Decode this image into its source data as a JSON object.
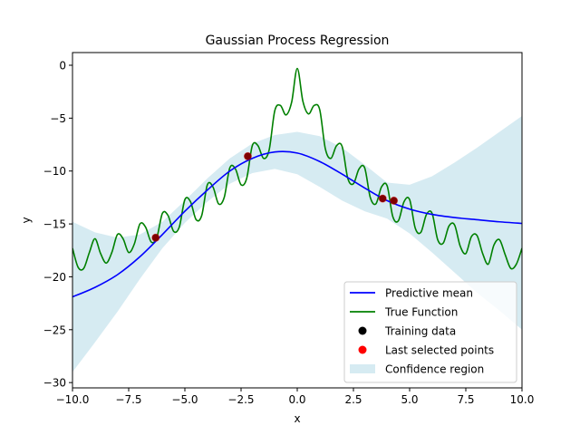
{
  "chart_data": {
    "type": "line",
    "title": "Gaussian Process Regression",
    "xlabel": "x",
    "ylabel": "y",
    "xlim": [
      -10,
      10
    ],
    "ylim": [
      -30.5,
      1.2
    ],
    "grid": false,
    "legend_position": "lower-right",
    "xticks": [
      -10,
      -7.5,
      -5,
      -2.5,
      0,
      2.5,
      5,
      7.5,
      10
    ],
    "xtick_labels": [
      "−10.0",
      "−7.5",
      "−5.0",
      "−2.5",
      "0.0",
      "2.5",
      "5.0",
      "7.5",
      "10.0"
    ],
    "yticks": [
      0,
      -5,
      -10,
      -15,
      -20,
      -25,
      -30
    ],
    "ytick_labels": [
      "0",
      "−5",
      "−10",
      "−15",
      "−20",
      "−25",
      "−30"
    ],
    "colors": {
      "predictive_mean": "#0000ff",
      "true_function": "#008000",
      "training_data": "#000000",
      "last_selected": "#ff0000",
      "confidence_fill": "#add8e6"
    },
    "series": [
      {
        "name": "Predictive mean",
        "kind": "line",
        "x": [
          -10,
          -9,
          -8,
          -7,
          -6,
          -5,
          -4,
          -3,
          -2,
          -1,
          0,
          1,
          2,
          3,
          4,
          5,
          6,
          7,
          8,
          9,
          10
        ],
        "y": [
          -21.9,
          -21.0,
          -19.8,
          -18.1,
          -16.0,
          -13.8,
          -11.8,
          -10.0,
          -8.8,
          -8.2,
          -8.3,
          -9.1,
          -10.3,
          -11.6,
          -12.8,
          -13.6,
          -14.1,
          -14.4,
          -14.6,
          -14.8,
          -14.95
        ]
      },
      {
        "name": "True Function",
        "kind": "line",
        "formula_note": "",
        "x": [],
        "y": []
      },
      {
        "name": "Training data",
        "kind": "scatter",
        "x": [
          -6.3,
          -2.2,
          3.8,
          4.3
        ],
        "y": [
          -16.3,
          -8.6,
          -12.6,
          -12.8
        ]
      },
      {
        "name": "Last selected points",
        "kind": "scatter",
        "x": [
          -6.3,
          -2.2,
          3.8,
          4.3
        ],
        "y": [
          -16.3,
          -8.6,
          -12.6,
          -12.8
        ]
      },
      {
        "name": "Confidence region",
        "kind": "band",
        "x": [
          -10,
          -9,
          -8,
          -7,
          -6,
          -5,
          -4,
          -3,
          -2,
          -1,
          0,
          1,
          2,
          3,
          4,
          5,
          6,
          7,
          8,
          9,
          10
        ],
        "upper": [
          -14.8,
          -15.8,
          -16.3,
          -16.0,
          -14.8,
          -12.8,
          -10.7,
          -8.8,
          -7.4,
          -6.6,
          -6.3,
          -6.7,
          -7.8,
          -9.4,
          -11.1,
          -11.3,
          -10.5,
          -9.2,
          -7.8,
          -6.3,
          -4.8
        ],
        "lower": [
          -29.0,
          -26.2,
          -23.3,
          -20.2,
          -17.3,
          -14.9,
          -12.9,
          -11.2,
          -10.2,
          -9.8,
          -10.3,
          -11.5,
          -12.8,
          -13.8,
          -14.5,
          -15.9,
          -17.7,
          -19.6,
          -21.5,
          -23.2,
          -25.0
        ]
      }
    ],
    "true_function_samples": {
      "x": [
        -10.0,
        -9.75,
        -9.5,
        -9.25,
        -9.0,
        -8.75,
        -8.5,
        -8.25,
        -8.0,
        -7.75,
        -7.5,
        -7.25,
        -7.0,
        -6.75,
        -6.5,
        -6.25,
        -6.0,
        -5.75,
        -5.5,
        -5.25,
        -5.0,
        -4.75,
        -4.5,
        -4.25,
        -4.0,
        -3.75,
        -3.5,
        -3.25,
        -3.0,
        -2.75,
        -2.5,
        -2.25,
        -2.0,
        -1.75,
        -1.5,
        -1.25,
        -1.0,
        -0.75,
        -0.5,
        -0.25,
        0.0,
        0.25,
        0.5,
        0.75,
        1.0,
        1.25,
        1.5,
        1.75,
        2.0,
        2.25,
        2.5,
        2.75,
        3.0,
        3.25,
        3.5,
        3.75,
        4.0,
        4.25,
        4.5,
        4.75,
        5.0,
        5.25,
        5.5,
        5.75,
        6.0,
        6.25,
        6.5,
        6.75,
        7.0,
        7.25,
        7.5,
        7.75,
        8.0,
        8.25,
        8.5,
        8.75,
        9.0,
        9.25,
        9.5,
        9.75,
        10.0
      ],
      "y": [
        -17.3,
        -19.1,
        -19.2,
        -17.7,
        -16.4,
        -17.8,
        -18.7,
        -17.7,
        -16.0,
        -16.4,
        -17.7,
        -16.9,
        -15.0,
        -15.3,
        -16.7,
        -16.3,
        -14.0,
        -14.2,
        -15.7,
        -15.3,
        -12.7,
        -12.9,
        -14.6,
        -14.2,
        -11.3,
        -11.5,
        -13.1,
        -12.5,
        -9.7,
        -9.8,
        -11.3,
        -10.7,
        -7.6,
        -7.6,
        -8.8,
        -8.0,
        -4.3,
        -3.8,
        -4.7,
        -3.5,
        -0.3,
        -3.4,
        -4.6,
        -3.8,
        -4.2,
        -7.9,
        -8.8,
        -7.6,
        -7.7,
        -10.7,
        -11.2,
        -9.8,
        -9.7,
        -12.5,
        -13.1,
        -11.5,
        -11.4,
        -14.3,
        -14.7,
        -12.9,
        -12.7,
        -15.4,
        -15.8,
        -14.1,
        -14.0,
        -16.5,
        -16.8,
        -15.2,
        -15.1,
        -17.1,
        -17.8,
        -16.2,
        -16.1,
        -17.8,
        -18.8,
        -17.0,
        -16.5,
        -17.9,
        -19.2,
        -18.8,
        -17.3
      ]
    },
    "legend": {
      "entries": [
        "Predictive mean",
        "True Function",
        "Training data",
        "Last selected points",
        "Confidence region"
      ]
    }
  }
}
